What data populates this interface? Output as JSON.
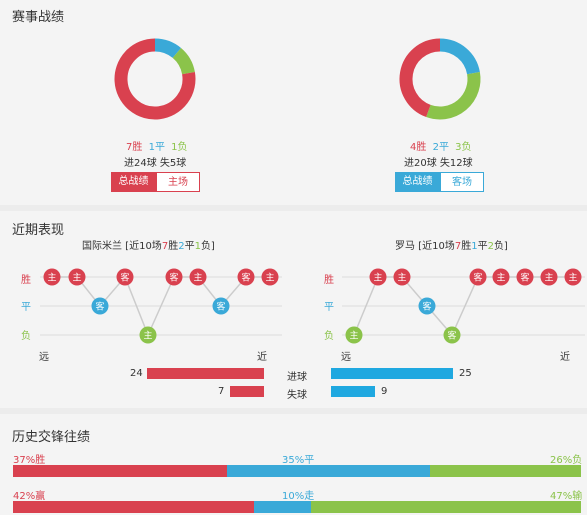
{
  "colors": {
    "win": "#d9414f",
    "draw": "#3aa9d8",
    "loss": "#8bc34a",
    "gray": "#aaaaaa",
    "blue": "#1fa8e0"
  },
  "season": {
    "title": "赛事战绩",
    "left": {
      "win_num": "7",
      "win_label": "胜",
      "draw_num": "1",
      "draw_label": "平",
      "loss_num": "1",
      "loss_label": "负",
      "goals": "进24球",
      "conceded": "失5球",
      "tab_all": "总战绩",
      "tab_venue": "主场",
      "slices": [
        {
          "key": "win",
          "value": 7
        },
        {
          "key": "draw",
          "value": 1
        },
        {
          "key": "loss",
          "value": 1
        }
      ]
    },
    "right": {
      "win_num": "4",
      "win_label": "胜",
      "draw_num": "2",
      "draw_label": "平",
      "loss_num": "3",
      "loss_label": "负",
      "goals": "进20球",
      "conceded": "失12球",
      "tab_all": "总战绩",
      "tab_venue": "客场",
      "slices": [
        {
          "key": "win",
          "value": 4
        },
        {
          "key": "draw",
          "value": 2
        },
        {
          "key": "loss",
          "value": 3
        }
      ]
    }
  },
  "recent": {
    "title": "近期表现",
    "row_win": "胜",
    "row_draw": "平",
    "row_loss": "负",
    "far": "远",
    "near": "近",
    "left": {
      "team": "国际米兰",
      "summary_open": " [近10场",
      "w": "7",
      "w_l": "胜",
      "d": "2",
      "d_l": "平",
      "l": "1",
      "l_l": "负]",
      "matches": [
        {
          "r": "win",
          "v": "主"
        },
        {
          "r": "win",
          "v": "主"
        },
        {
          "r": "draw",
          "v": "客"
        },
        {
          "r": "win",
          "v": "客"
        },
        {
          "r": "loss",
          "v": "主"
        },
        {
          "r": "win",
          "v": "客"
        },
        {
          "r": "win",
          "v": "主"
        },
        {
          "r": "draw",
          "v": "客"
        },
        {
          "r": "win",
          "v": "客"
        },
        {
          "r": "win",
          "v": "主"
        }
      ]
    },
    "right": {
      "team": "罗马",
      "summary_open": " [近10场",
      "w": "7",
      "w_l": "胜",
      "d": "1",
      "d_l": "平",
      "l": "2",
      "l_l": "负]",
      "matches": [
        {
          "r": "loss",
          "v": "主"
        },
        {
          "r": "win",
          "v": "主"
        },
        {
          "r": "win",
          "v": "主"
        },
        {
          "r": "draw",
          "v": "客"
        },
        {
          "r": "loss",
          "v": "客"
        },
        {
          "r": "win",
          "v": "客"
        },
        {
          "r": "win",
          "v": "主"
        },
        {
          "r": "win",
          "v": "客"
        },
        {
          "r": "win",
          "v": "主"
        },
        {
          "r": "win",
          "v": "主"
        }
      ]
    },
    "goals_label": "进球",
    "conceded_label": "失球",
    "left_goals": 24,
    "left_conceded": 7,
    "right_goals": 25,
    "right_conceded": 9,
    "left_goals_text": "24",
    "left_conceded_text": "7",
    "right_goals_text": "25",
    "right_conceded_text": "9"
  },
  "h2h": {
    "title": "历史交锋往绩",
    "row1": {
      "left": "37%胜",
      "mid": "35%平",
      "right": "26%负",
      "parts": [
        37,
        35,
        26
      ]
    },
    "row2": {
      "left": "42%赢",
      "mid": "10%走",
      "right": "47%输",
      "parts": [
        42,
        10,
        47
      ]
    }
  }
}
